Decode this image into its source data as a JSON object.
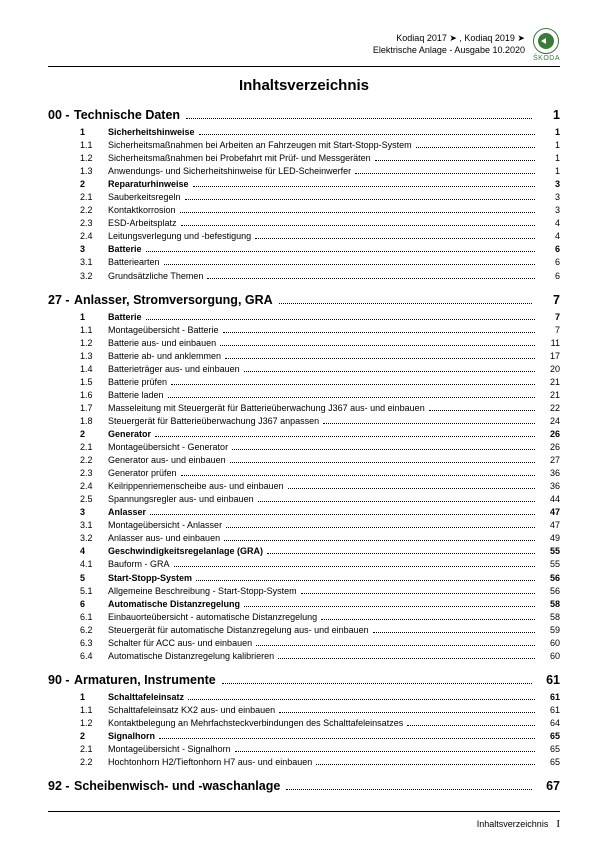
{
  "header": {
    "line1": "Kodiaq 2017 ➤ , Kodiaq 2019 ➤",
    "line2": "Elektrische Anlage - Ausgabe 10.2020",
    "brand": "ŠKODA"
  },
  "title": "Inhaltsverzeichnis",
  "chapters": [
    {
      "num": "00 -",
      "label": "Technische Daten",
      "page": "1",
      "rows": [
        {
          "n": "1",
          "l": "Sicherheitshinweise",
          "p": "1",
          "b": true
        },
        {
          "n": "1.1",
          "l": "Sicherheitsmaßnahmen bei Arbeiten an Fahrzeugen mit Start-Stopp-System",
          "p": "1"
        },
        {
          "n": "1.2",
          "l": "Sicherheitsmaßnahmen bei Probefahrt mit Prüf- und Messgeräten",
          "p": "1"
        },
        {
          "n": "1.3",
          "l": "Anwendungs- und Sicherheitshinweise für LED-Scheinwerfer",
          "p": "1"
        },
        {
          "n": "2",
          "l": "Reparaturhinweise",
          "p": "3",
          "b": true
        },
        {
          "n": "2.1",
          "l": "Sauberkeitsregeln",
          "p": "3"
        },
        {
          "n": "2.2",
          "l": "Kontaktkorrosion",
          "p": "3"
        },
        {
          "n": "2.3",
          "l": "ESD-Arbeitsplatz",
          "p": "4"
        },
        {
          "n": "2.4",
          "l": "Leitungsverlegung und -befestigung",
          "p": "4"
        },
        {
          "n": "3",
          "l": "Batterie",
          "p": "6",
          "b": true
        },
        {
          "n": "3.1",
          "l": "Batteriearten",
          "p": "6"
        },
        {
          "n": "3.2",
          "l": "Grundsätzliche Themen",
          "p": "6"
        }
      ]
    },
    {
      "num": "27 -",
      "label": "Anlasser, Stromversorgung, GRA",
      "page": "7",
      "rows": [
        {
          "n": "1",
          "l": "Batterie",
          "p": "7",
          "b": true
        },
        {
          "n": "1.1",
          "l": "Montageübersicht - Batterie",
          "p": "7"
        },
        {
          "n": "1.2",
          "l": "Batterie aus- und einbauen",
          "p": "11"
        },
        {
          "n": "1.3",
          "l": "Batterie ab- und anklemmen",
          "p": "17"
        },
        {
          "n": "1.4",
          "l": "Batterieträger aus- und einbauen",
          "p": "20"
        },
        {
          "n": "1.5",
          "l": "Batterie prüfen",
          "p": "21"
        },
        {
          "n": "1.6",
          "l": "Batterie laden",
          "p": "21"
        },
        {
          "n": "1.7",
          "l": "Masseleitung mit Steuergerät für Batterieüberwachung J367 aus- und einbauen",
          "p": "22"
        },
        {
          "n": "1.8",
          "l": "Steuergerät für Batterieüberwachung J367 anpassen",
          "p": "24"
        },
        {
          "n": "2",
          "l": "Generator",
          "p": "26",
          "b": true
        },
        {
          "n": "2.1",
          "l": "Montageübersicht - Generator",
          "p": "26"
        },
        {
          "n": "2.2",
          "l": "Generator aus- und einbauen",
          "p": "27"
        },
        {
          "n": "2.3",
          "l": "Generator prüfen",
          "p": "36"
        },
        {
          "n": "2.4",
          "l": "Keilrippenriemenscheibe aus- und einbauen",
          "p": "36"
        },
        {
          "n": "2.5",
          "l": "Spannungsregler aus- und einbauen",
          "p": "44"
        },
        {
          "n": "3",
          "l": "Anlasser",
          "p": "47",
          "b": true
        },
        {
          "n": "3.1",
          "l": "Montageübersicht - Anlasser",
          "p": "47"
        },
        {
          "n": "3.2",
          "l": "Anlasser aus- und einbauen",
          "p": "49"
        },
        {
          "n": "4",
          "l": "Geschwindigkeitsregelanlage (GRA)",
          "p": "55",
          "b": true
        },
        {
          "n": "4.1",
          "l": "Bauform - GRA",
          "p": "55"
        },
        {
          "n": "5",
          "l": "Start-Stopp-System",
          "p": "56",
          "b": true
        },
        {
          "n": "5.1",
          "l": "Allgemeine Beschreibung - Start-Stopp-System",
          "p": "56"
        },
        {
          "n": "6",
          "l": "Automatische Distanzregelung",
          "p": "58",
          "b": true
        },
        {
          "n": "6.1",
          "l": "Einbauorteübersicht - automatische Distanzregelung",
          "p": "58"
        },
        {
          "n": "6.2",
          "l": "Steuergerät für automatische Distanzregelung aus- und einbauen",
          "p": "59"
        },
        {
          "n": "6.3",
          "l": "Schalter für ACC aus- und einbauen",
          "p": "60"
        },
        {
          "n": "6.4",
          "l": "Automatische Distanzregelung kalibrieren",
          "p": "60"
        }
      ]
    },
    {
      "num": "90 -",
      "label": "Armaturen, Instrumente",
      "page": "61",
      "rows": [
        {
          "n": "1",
          "l": "Schalttafeleinsatz",
          "p": "61",
          "b": true
        },
        {
          "n": "1.1",
          "l": "Schalttafeleinsatz KX2 aus- und einbauen",
          "p": "61"
        },
        {
          "n": "1.2",
          "l": "Kontaktbelegung an Mehrfachsteckverbindungen des Schalttafeleinsatzes",
          "p": "64"
        },
        {
          "n": "2",
          "l": "Signalhorn",
          "p": "65",
          "b": true
        },
        {
          "n": "2.1",
          "l": "Montageübersicht - Signalhorn",
          "p": "65"
        },
        {
          "n": "2.2",
          "l": "Hochtonhorn H2/Tieftonhorn H7 aus- und einbauen",
          "p": "65"
        }
      ]
    },
    {
      "num": "92 -",
      "label": "Scheibenwisch- und -waschanlage",
      "page": "67",
      "rows": []
    }
  ],
  "footer": {
    "label": "Inhaltsverzeichnis",
    "page": "I"
  }
}
